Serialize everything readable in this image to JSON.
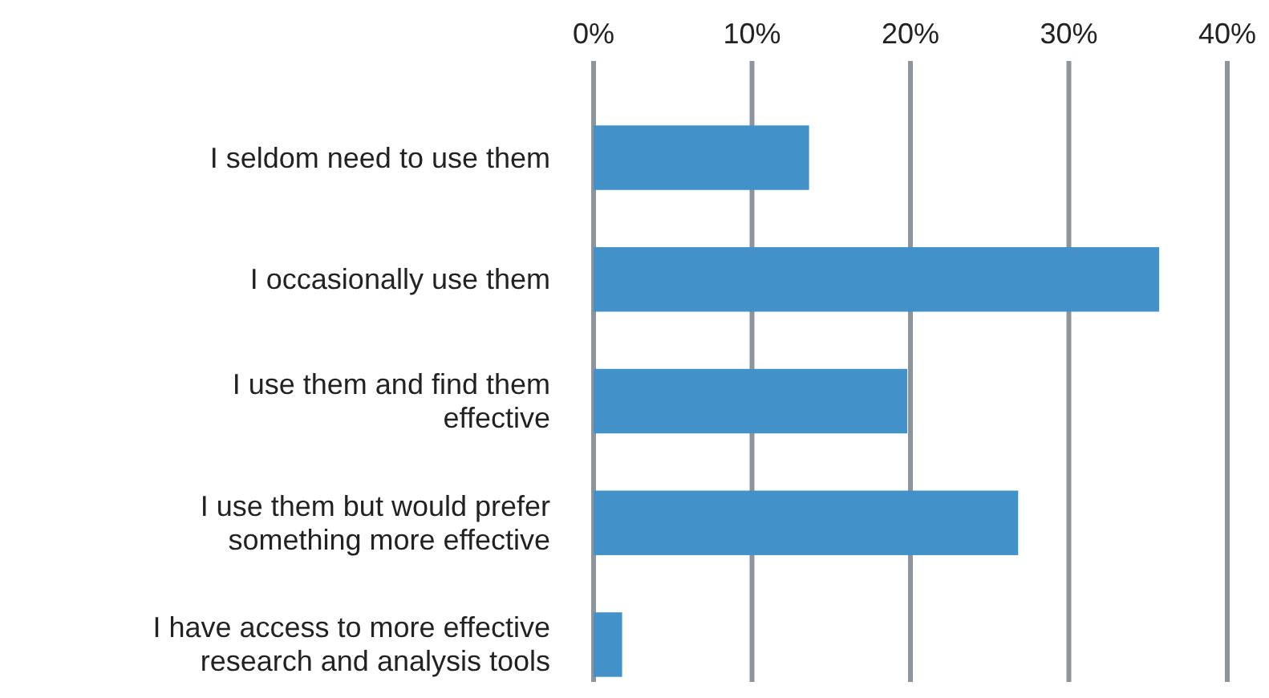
{
  "chart_data": {
    "type": "bar",
    "orientation": "horizontal",
    "categories": [
      "I seldom need to use them",
      "I occasionally use them",
      "I use them and find them effective",
      "I use them but would prefer something more effective",
      "I have access to more effective research and analysis tools"
    ],
    "values": [
      13.6,
      35.7,
      19.8,
      26.8,
      1.8
    ],
    "color": "#4391c9",
    "xlim": [
      0,
      40
    ],
    "xticks": [
      {
        "value": 0,
        "label": "0%"
      },
      {
        "value": 10,
        "label": "10%"
      },
      {
        "value": 20,
        "label": "20%"
      },
      {
        "value": 30,
        "label": "30%"
      },
      {
        "value": 40,
        "label": "40%"
      }
    ],
    "grid": "x"
  }
}
